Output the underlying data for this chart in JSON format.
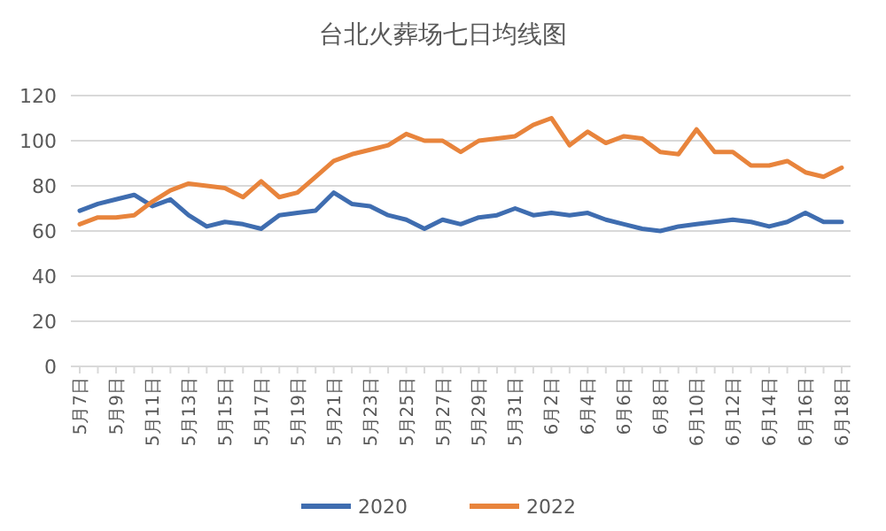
{
  "chart_data": {
    "type": "line",
    "title": "台北火葬场七日均线图",
    "categories": [
      "5月7日",
      null,
      "5月9日",
      null,
      "5月11日",
      null,
      "5月13日",
      null,
      "5月15日",
      null,
      "5月17日",
      null,
      "5月19日",
      null,
      "5月21日",
      null,
      "5月23日",
      null,
      "5月25日",
      null,
      "5月27日",
      null,
      "5月29日",
      null,
      "5月31日",
      null,
      "6月2日",
      null,
      "6月4日",
      null,
      "6月6日",
      null,
      "6月8日",
      null,
      "6月10日",
      null,
      "6月12日",
      null,
      "6月14日",
      null,
      "6月16日",
      null,
      "6月18日"
    ],
    "series": [
      {
        "name": "2020",
        "color": "#3f6db0",
        "values": [
          69,
          72,
          74,
          76,
          71,
          74,
          67,
          62,
          64,
          63,
          61,
          67,
          68,
          69,
          77,
          72,
          71,
          67,
          65,
          61,
          65,
          63,
          66,
          67,
          70,
          67,
          68,
          67,
          68,
          65,
          63,
          61,
          60,
          62,
          63,
          64,
          65,
          64,
          62,
          64,
          68,
          64,
          64
        ]
      },
      {
        "name": "2022",
        "color": "#e8843c",
        "values": [
          63,
          66,
          66,
          67,
          73,
          78,
          81,
          80,
          79,
          75,
          82,
          75,
          77,
          84,
          91,
          94,
          96,
          98,
          103,
          100,
          100,
          95,
          100,
          101,
          102,
          107,
          110,
          98,
          104,
          99,
          102,
          101,
          95,
          94,
          105,
          95,
          95,
          89,
          89,
          91,
          86,
          84,
          88
        ]
      }
    ],
    "ylim": [
      0,
      120
    ],
    "yticks": [
      0,
      20,
      40,
      60,
      80,
      100,
      120
    ],
    "grid": "y",
    "legend": "bottom"
  }
}
